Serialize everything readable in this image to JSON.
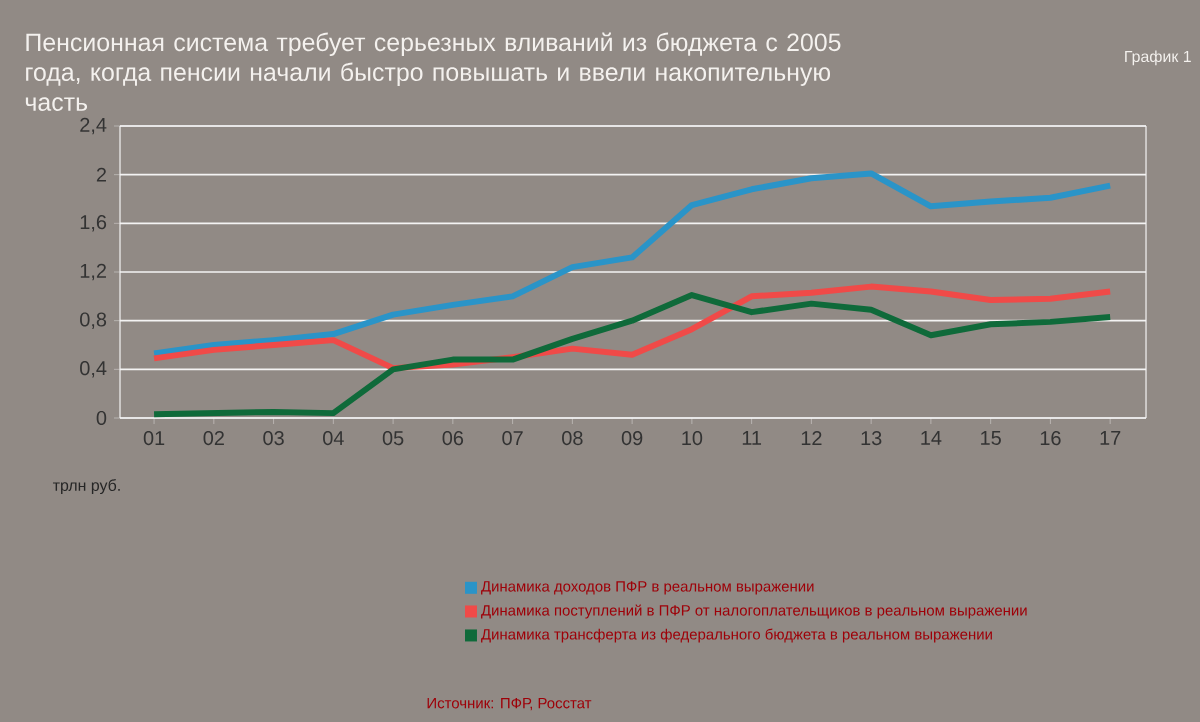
{
  "chart_data": {
    "type": "line",
    "title": "Пенсионная система требует серьезных вливаний из бюджета с 2005 года, когда пенсии начали быстро повышать и ввели накопительную часть",
    "subtitle": "График 1",
    "ylabel": "трлн руб.",
    "categories": [
      "01",
      "02",
      "03",
      "04",
      "05",
      "06",
      "07",
      "08",
      "09",
      "10",
      "11",
      "12",
      "13",
      "14",
      "15",
      "16",
      "17"
    ],
    "series": [
      {
        "name": "Динамика доходов ПФР в реальном выражении",
        "color": "#2a94c8",
        "values": [
          0.53,
          0.6,
          0.64,
          0.69,
          0.85,
          0.93,
          1.0,
          1.24,
          1.32,
          1.75,
          1.88,
          1.97,
          2.01,
          1.74,
          1.78,
          1.81,
          1.91
        ]
      },
      {
        "name": "Динамика поступлений в ПФР от налогоплательщиков в реальном выражении",
        "color": "#f04a48",
        "values": [
          0.49,
          0.56,
          0.6,
          0.64,
          0.41,
          0.44,
          0.5,
          0.57,
          0.52,
          0.73,
          1.0,
          1.03,
          1.08,
          1.04,
          0.97,
          0.98,
          1.04
        ]
      },
      {
        "name": "Динамика трансферта из федерального бюджета в реальном выражении",
        "color": "#0f6a3a",
        "values": [
          0.03,
          0.04,
          0.05,
          0.04,
          0.4,
          0.48,
          0.48,
          0.65,
          0.8,
          1.01,
          0.87,
          0.94,
          0.89,
          0.68,
          0.77,
          0.79,
          0.83
        ]
      }
    ],
    "ylim": [
      0,
      2.4
    ],
    "yticks": [
      0,
      {
        "value": 0.4,
        "label": "0,4"
      },
      {
        "value": 0.8,
        "label": "0,8"
      },
      {
        "value": 1.2,
        "label": "1,2"
      },
      {
        "value": 1.6,
        "label": "1,6"
      },
      2,
      {
        "value": 2.4,
        "label": "2,4"
      }
    ],
    "grid": "y",
    "legend": "bottom",
    "marker": "none",
    "line_style": "solid",
    "annotations": [
      "Источник: ПФР, Росстат"
    ]
  }
}
